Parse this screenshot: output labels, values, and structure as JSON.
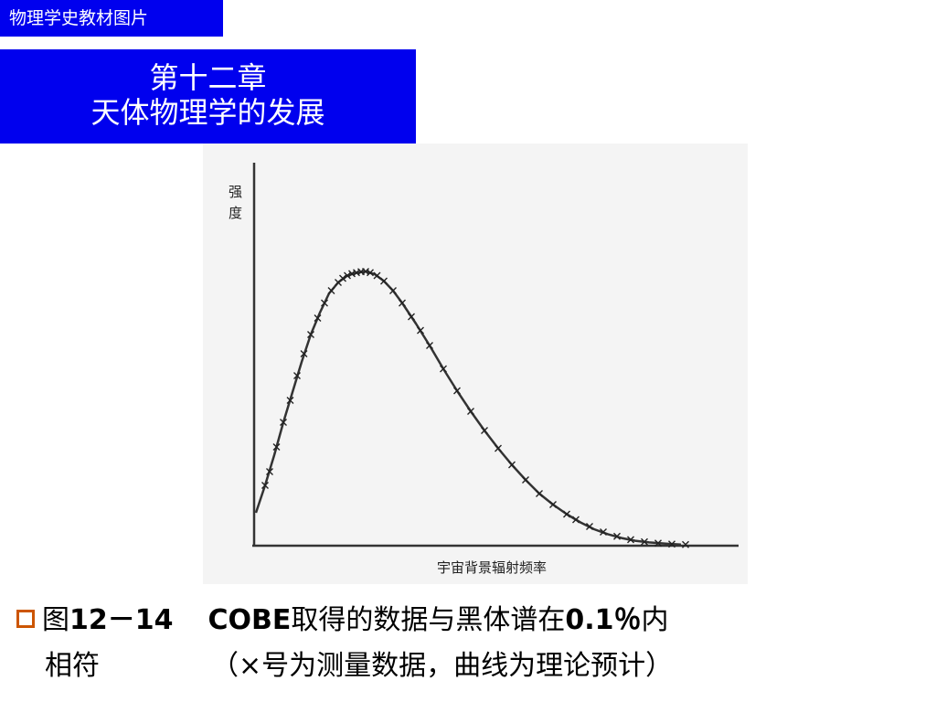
{
  "header": {
    "tag": "物理学史教材图片",
    "title_line1": "第十二章",
    "title_line2": "天体物理学的发展"
  },
  "chart_data": {
    "type": "line",
    "ylabel_chars": [
      "强",
      "度"
    ],
    "xlabel": "宇宙背景辐射频率",
    "series": [
      {
        "values": [
          [
            0.0,
            0.12
          ],
          [
            0.02,
            0.22
          ],
          [
            0.04,
            0.33
          ],
          [
            0.06,
            0.45
          ],
          [
            0.08,
            0.56
          ],
          [
            0.1,
            0.67
          ],
          [
            0.12,
            0.77
          ],
          [
            0.14,
            0.85
          ],
          [
            0.16,
            0.92
          ],
          [
            0.18,
            0.96
          ],
          [
            0.2,
            0.985
          ],
          [
            0.22,
            0.995
          ],
          [
            0.24,
            1.0
          ],
          [
            0.26,
            0.99
          ],
          [
            0.28,
            0.965
          ],
          [
            0.3,
            0.93
          ],
          [
            0.32,
            0.885
          ],
          [
            0.35,
            0.81
          ],
          [
            0.38,
            0.73
          ],
          [
            0.41,
            0.645
          ],
          [
            0.44,
            0.565
          ],
          [
            0.47,
            0.49
          ],
          [
            0.5,
            0.42
          ],
          [
            0.53,
            0.355
          ],
          [
            0.56,
            0.295
          ],
          [
            0.59,
            0.24
          ],
          [
            0.62,
            0.19
          ],
          [
            0.65,
            0.15
          ],
          [
            0.68,
            0.115
          ],
          [
            0.71,
            0.085
          ],
          [
            0.74,
            0.06
          ],
          [
            0.77,
            0.042
          ],
          [
            0.8,
            0.028
          ],
          [
            0.83,
            0.018
          ],
          [
            0.86,
            0.012
          ],
          [
            0.9,
            0.007
          ],
          [
            0.93,
            0.004
          ]
        ]
      }
    ],
    "measured_points": [
      [
        0.02,
        0.22
      ],
      [
        0.03,
        0.27
      ],
      [
        0.045,
        0.36
      ],
      [
        0.06,
        0.45
      ],
      [
        0.075,
        0.53
      ],
      [
        0.09,
        0.62
      ],
      [
        0.105,
        0.7
      ],
      [
        0.12,
        0.77
      ],
      [
        0.135,
        0.83
      ],
      [
        0.15,
        0.885
      ],
      [
        0.165,
        0.93
      ],
      [
        0.18,
        0.96
      ],
      [
        0.19,
        0.975
      ],
      [
        0.2,
        0.985
      ],
      [
        0.21,
        0.992
      ],
      [
        0.22,
        0.996
      ],
      [
        0.23,
        0.999
      ],
      [
        0.24,
        1.0
      ],
      [
        0.25,
        0.996
      ],
      [
        0.265,
        0.985
      ],
      [
        0.28,
        0.965
      ],
      [
        0.3,
        0.93
      ],
      [
        0.32,
        0.885
      ],
      [
        0.34,
        0.835
      ],
      [
        0.36,
        0.785
      ],
      [
        0.38,
        0.73
      ],
      [
        0.41,
        0.645
      ],
      [
        0.44,
        0.565
      ],
      [
        0.47,
        0.49
      ],
      [
        0.5,
        0.42
      ],
      [
        0.53,
        0.355
      ],
      [
        0.56,
        0.295
      ],
      [
        0.59,
        0.24
      ],
      [
        0.62,
        0.19
      ],
      [
        0.65,
        0.15
      ],
      [
        0.68,
        0.115
      ],
      [
        0.7,
        0.095
      ],
      [
        0.73,
        0.07
      ],
      [
        0.76,
        0.05
      ],
      [
        0.79,
        0.034
      ],
      [
        0.82,
        0.022
      ],
      [
        0.85,
        0.014
      ],
      [
        0.88,
        0.009
      ],
      [
        0.91,
        0.006
      ],
      [
        0.94,
        0.004
      ]
    ],
    "xlim": [
      0,
      1
    ],
    "ylim": [
      0,
      1.3
    ],
    "grid": false
  },
  "caption": {
    "prefix": "图",
    "number": "12－14",
    "cobe": "COBE",
    "text1": "取得的数据与黑体谱在",
    "percent": "0.1％",
    "text2": "内",
    "line2_a": "相符",
    "line2_b": "（×号为测量数据，曲线为理论预计）"
  },
  "colors": {
    "banner_blue": "#0000ee",
    "bullet_orange": "#cc5500",
    "curve": "#333333"
  }
}
